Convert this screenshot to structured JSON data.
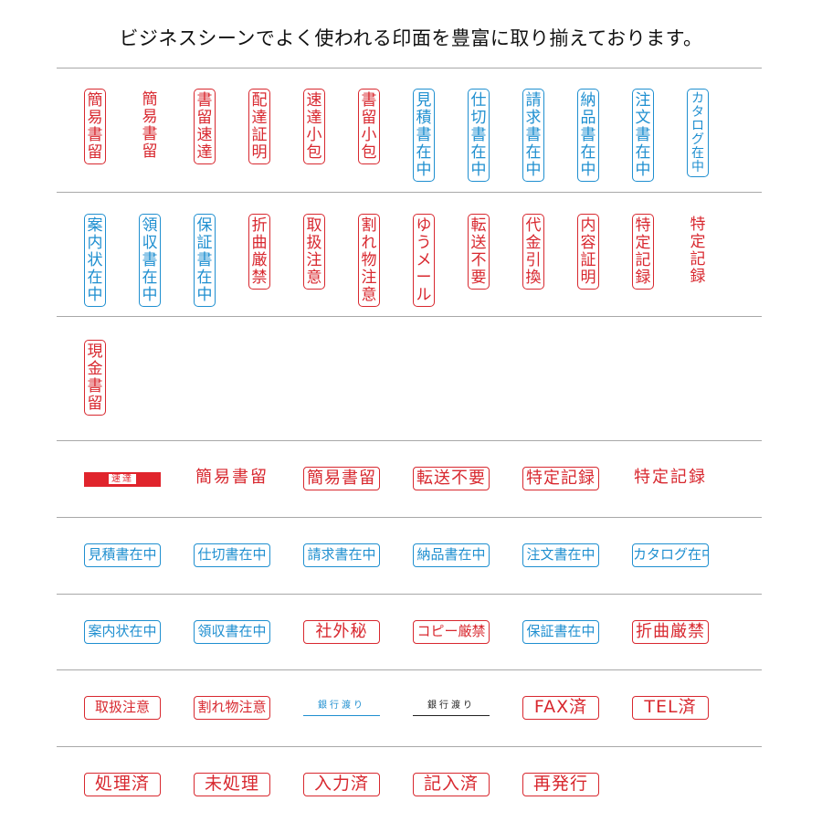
{
  "heading": "ビジネスシーンでよく使われる印面を豊富に取り揃えております。",
  "colors": {
    "red": "#d8282f",
    "blue": "#1f8fd0",
    "black": "#222222",
    "rule": "#a8a8a8"
  },
  "vertical_row1": [
    {
      "text": "簡易書留",
      "color": "red",
      "bordered": true
    },
    {
      "text": "簡易書留",
      "color": "red",
      "bordered": false
    },
    {
      "text": "書留速達",
      "color": "red",
      "bordered": true
    },
    {
      "text": "配達証明",
      "color": "red",
      "bordered": true
    },
    {
      "text": "速達小包",
      "color": "red",
      "bordered": true
    },
    {
      "text": "書留小包",
      "color": "red",
      "bordered": true
    },
    {
      "text": "見積書在中",
      "color": "blue",
      "bordered": true
    },
    {
      "text": "仕切書在中",
      "color": "blue",
      "bordered": true
    },
    {
      "text": "請求書在中",
      "color": "blue",
      "bordered": true
    },
    {
      "text": "納品書在中",
      "color": "blue",
      "bordered": true
    },
    {
      "text": "注文書在中",
      "color": "blue",
      "bordered": true
    },
    {
      "text": "カタログ在中",
      "color": "blue",
      "bordered": true
    }
  ],
  "vertical_row2": [
    {
      "text": "案内状在中",
      "color": "blue",
      "bordered": true
    },
    {
      "text": "領収書在中",
      "color": "blue",
      "bordered": true
    },
    {
      "text": "保証書在中",
      "color": "blue",
      "bordered": true
    },
    {
      "text": "折曲厳禁",
      "color": "red",
      "bordered": true
    },
    {
      "text": "取扱注意",
      "color": "red",
      "bordered": true
    },
    {
      "text": "割れ物注意",
      "color": "red",
      "bordered": true
    },
    {
      "text": "ゆうメール",
      "color": "red",
      "bordered": true
    },
    {
      "text": "転送不要",
      "color": "red",
      "bordered": true
    },
    {
      "text": "代金引換",
      "color": "red",
      "bordered": true
    },
    {
      "text": "内容証明",
      "color": "red",
      "bordered": true
    },
    {
      "text": "特定記録",
      "color": "red",
      "bordered": true
    },
    {
      "text": "特定記録",
      "color": "red",
      "bordered": false
    }
  ],
  "vertical_row3": [
    {
      "text": "現金書留",
      "color": "red",
      "bordered": true
    }
  ],
  "horizontal_row1": [
    {
      "text": "速達",
      "style": "bar",
      "color": "red"
    },
    {
      "text": "簡易書留",
      "style": "plain",
      "color": "red"
    },
    {
      "text": "簡易書留",
      "style": "big",
      "color": "red"
    },
    {
      "text": "転送不要",
      "style": "big",
      "color": "red"
    },
    {
      "text": "特定記録",
      "style": "big",
      "color": "red"
    },
    {
      "text": "特定記録",
      "style": "plain",
      "color": "red"
    }
  ],
  "horizontal_row2": [
    {
      "text": "見積書在中",
      "style": "box",
      "color": "blue"
    },
    {
      "text": "仕切書在中",
      "style": "box",
      "color": "blue"
    },
    {
      "text": "請求書在中",
      "style": "box",
      "color": "blue"
    },
    {
      "text": "納品書在中",
      "style": "box",
      "color": "blue"
    },
    {
      "text": "注文書在中",
      "style": "box",
      "color": "blue"
    },
    {
      "text": "カタログ在中",
      "style": "box",
      "color": "blue"
    }
  ],
  "horizontal_row3": [
    {
      "text": "案内状在中",
      "style": "box",
      "color": "blue"
    },
    {
      "text": "領収書在中",
      "style": "box",
      "color": "blue"
    },
    {
      "text": "社外秘",
      "style": "big",
      "color": "red"
    },
    {
      "text": "コピー厳禁",
      "style": "box",
      "color": "red"
    },
    {
      "text": "保証書在中",
      "style": "box",
      "color": "blue"
    },
    {
      "text": "折曲厳禁",
      "style": "big",
      "color": "red"
    }
  ],
  "horizontal_row4": [
    {
      "text": "取扱注意",
      "style": "box",
      "color": "red"
    },
    {
      "text": "割れ物注意",
      "style": "box",
      "color": "red"
    },
    {
      "text": "銀行渡り",
      "style": "line",
      "color": "blue"
    },
    {
      "text": "銀行渡り",
      "style": "line",
      "color": "black"
    },
    {
      "text": "FAX済",
      "style": "sans",
      "color": "red"
    },
    {
      "text": "TEL済",
      "style": "sans",
      "color": "red"
    }
  ],
  "horizontal_row5": [
    {
      "text": "処理済",
      "style": "sans",
      "color": "red"
    },
    {
      "text": "未処理",
      "style": "sans",
      "color": "red"
    },
    {
      "text": "入力済",
      "style": "sans",
      "color": "red"
    },
    {
      "text": "記入済",
      "style": "sans",
      "color": "red"
    },
    {
      "text": "再発行",
      "style": "sans",
      "color": "red"
    }
  ]
}
